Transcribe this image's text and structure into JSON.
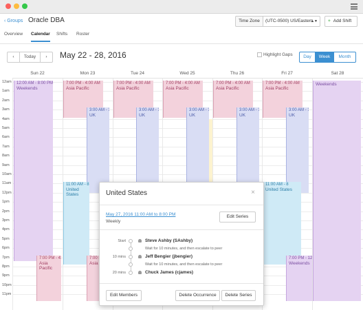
{
  "app": {
    "back_label": "‹ Groups",
    "title": "Oracle DBA",
    "timezone_label": "Time Zone",
    "timezone_value": "(UTC-0500) US/Eastern",
    "add_shift_label": "Add Shift",
    "tabs": [
      "Overview",
      "Calendar",
      "Shifts",
      "Roster"
    ],
    "active_tab": "Calendar"
  },
  "toolbar": {
    "prev": "‹",
    "today": "Today",
    "next": "›",
    "range": "May 22 - 28, 2016",
    "highlight_gaps": "Highlight Gaps",
    "views": [
      "Day",
      "Week",
      "Month"
    ],
    "active_view": "Week"
  },
  "calendar": {
    "days": [
      "Sun 22",
      "Mon 23",
      "Tue 24",
      "Wed 25",
      "Thu 26",
      "Fri 27",
      "Sat 28"
    ],
    "hours": [
      "12am",
      "1am",
      "2am",
      "3am",
      "4am",
      "5am",
      "6am",
      "7am",
      "8am",
      "9am",
      "10am",
      "11am",
      "12pm",
      "1pm",
      "2pm",
      "3pm",
      "4pm",
      "5pm",
      "6pm",
      "7pm",
      "8pm",
      "9pm",
      "10pm",
      "11pm"
    ],
    "events": {
      "sun_weekend": {
        "time": "12:00 AM - 8:00 PM",
        "name": "Weekends"
      },
      "sun_asia": {
        "time": "7:00 PM - 4:0",
        "name": "Asia Pacific"
      },
      "mon_asia": {
        "time": "7:00 PM - 4:00 AM",
        "name": "Asia Pacific"
      },
      "mon_uk": {
        "time": "3:00 AM - 12",
        "name": "UK"
      },
      "mon_us": {
        "time": "11:00 AM - 8",
        "name": "United States"
      },
      "mon_asia2": {
        "time": "7:00 PM",
        "name": "Asia"
      },
      "tue_asia": {
        "time": "7:00 PM - 4:00 AM",
        "name": "Asia Pacific"
      },
      "tue_uk": {
        "time": "3:00 AM - 12",
        "name": "UK"
      },
      "wed_asia": {
        "time": "7:00 PM - 4:00 AM",
        "name": "Asia Pacific"
      },
      "wed_uk": {
        "time": "3:00 AM - 12",
        "name": "UK"
      },
      "thu_asia": {
        "time": "7:00 PM - 4:00 AM",
        "name": "Asia Pacific"
      },
      "thu_uk": {
        "time": "3:00 AM - 12",
        "name": "UK"
      },
      "fri_asia": {
        "time": "7:00 PM - 4:00 AM",
        "name": "Asia Pacific"
      },
      "fri_uk": {
        "time": "3:00 AM - 12",
        "name": "UK"
      },
      "fri_us": {
        "time": "11:00 AM - 8",
        "name": "United States"
      },
      "fri_weekend": {
        "time": "7:00 PM - 12",
        "name": "Weekends"
      },
      "sat_weekend": {
        "time": "",
        "name": "Weekends"
      }
    }
  },
  "popover": {
    "title": "United States",
    "close": "×",
    "date_link": "May 27, 2016 11:00 AM to 8:00 PM",
    "recurrence": "Weekly",
    "edit_series": "Edit Series",
    "escalation": [
      {
        "time": "Start",
        "user": "Steve Ashby (SAshby)"
      },
      {
        "time": "",
        "wait": "Wait for 10 minutes, and then escalate to peer"
      },
      {
        "time": "10 mins",
        "user": "Jeff Bengier (jbengier)"
      },
      {
        "time": "",
        "wait": "Wait for 10 minutes, and then escalate to peer"
      },
      {
        "time": "20 mins",
        "user": "Chuck James (cjames)"
      }
    ],
    "edit_members": "Edit Members",
    "delete_occurrence": "Delete Occurrence",
    "delete_series": "Delete Series"
  },
  "colors": {
    "accent": "#3b8fd1",
    "weekend": "#e5d3f2",
    "asia_pacific": "#f3d2dc",
    "uk": "#d9ddf4",
    "united_states": "#cfeaf6"
  }
}
